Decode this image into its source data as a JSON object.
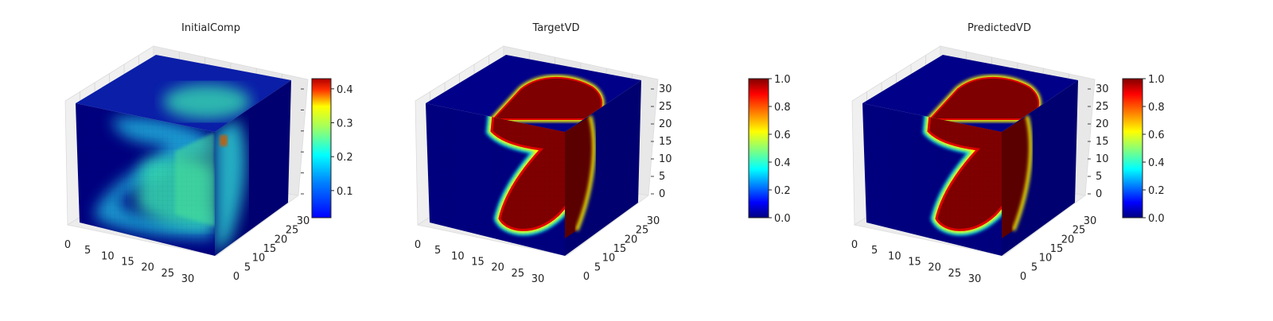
{
  "chart_data": [
    {
      "type": "voxel3d",
      "title": "InitialComp",
      "x_ticks": [
        "0",
        "5",
        "10",
        "15",
        "20",
        "25",
        "30"
      ],
      "y_ticks": [
        "0",
        "5",
        "10",
        "15",
        "20",
        "25",
        "30"
      ],
      "z_ticks": [
        "",
        "",
        "",
        "",
        "",
        ""
      ],
      "colormap": "jet",
      "colorbar": {
        "min": 0.02,
        "max": 0.43,
        "ticks": [
          "0.1",
          "0.2",
          "0.3",
          "0.4"
        ],
        "tick_values": [
          0.1,
          0.2,
          0.3,
          0.4
        ]
      },
      "face_value_range": [
        0.05,
        0.25
      ]
    },
    {
      "type": "voxel3d",
      "title": "TargetVD",
      "x_ticks": [
        "0",
        "5",
        "10",
        "15",
        "20",
        "25",
        "30"
      ],
      "y_ticks": [
        "0",
        "5",
        "10",
        "15",
        "20",
        "25",
        "30"
      ],
      "z_ticks": [
        "0",
        "5",
        "10",
        "15",
        "20",
        "25",
        "30"
      ],
      "colormap": "jet",
      "colorbar": {
        "min": 0.0,
        "max": 1.0,
        "ticks": [
          "0.0",
          "0.2",
          "0.4",
          "0.6",
          "0.8",
          "1.0"
        ],
        "tick_values": [
          0,
          0.2,
          0.4,
          0.6,
          0.8,
          1.0
        ]
      },
      "face_value_range": [
        0.0,
        1.0
      ]
    },
    {
      "type": "voxel3d",
      "title": "PredictedVD",
      "x_ticks": [
        "0",
        "5",
        "10",
        "15",
        "20",
        "25",
        "30"
      ],
      "y_ticks": [
        "0",
        "5",
        "10",
        "15",
        "20",
        "25",
        "30"
      ],
      "z_ticks": [
        "0",
        "5",
        "10",
        "15",
        "20",
        "25",
        "30"
      ],
      "colormap": "jet",
      "colorbar": {
        "min": 0.0,
        "max": 1.0,
        "ticks": [
          "0.0",
          "0.2",
          "0.4",
          "0.6",
          "0.8",
          "1.0"
        ],
        "tick_values": [
          0,
          0.2,
          0.4,
          0.6,
          0.8,
          1.0
        ]
      },
      "face_value_range": [
        0.0,
        1.0
      ]
    }
  ],
  "colors": {
    "jet_dark_blue": "#00007f",
    "jet_blue": "#0000ff",
    "jet_cyan": "#00ffff",
    "jet_yellow": "#ffff00",
    "jet_red": "#ff0000",
    "jet_dark_red": "#7f0000",
    "pane_gray": "#f2f2f2"
  }
}
